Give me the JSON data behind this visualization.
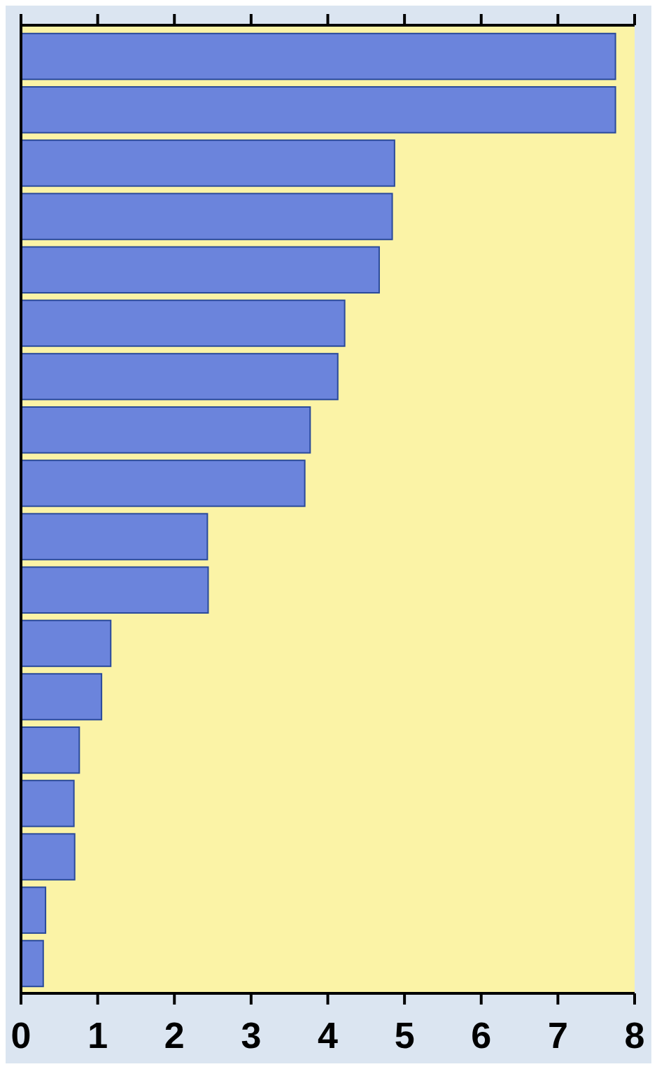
{
  "chart_data": {
    "type": "bar",
    "orientation": "horizontal",
    "categories": [
      null,
      null,
      null,
      null,
      null,
      null,
      null,
      null,
      null,
      null,
      null,
      null,
      null,
      null,
      null,
      null,
      null,
      null
    ],
    "values": [
      7.75,
      7.75,
      4.87,
      4.84,
      4.67,
      4.22,
      4.13,
      3.77,
      3.7,
      2.43,
      2.44,
      1.17,
      1.05,
      0.76,
      0.69,
      0.7,
      0.32,
      0.29
    ],
    "color": "#6b84dc",
    "xlim": [
      0,
      8
    ],
    "xticks": [
      0,
      1,
      2,
      3,
      4,
      5,
      6,
      7,
      8
    ],
    "grid": false
  }
}
